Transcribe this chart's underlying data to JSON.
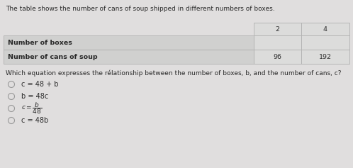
{
  "bg_color": "#e0dede",
  "title_text": "The table shows the number of cans of soup shipped in different numbers of boxes.",
  "table_row1_label": "Number of boxes",
  "table_row2_label": "Number of cans of soup",
  "col_headers": [
    "2",
    "4"
  ],
  "table_data": [
    "96",
    "192"
  ],
  "question_text": "Which equation expresses the rélationship between the number of boxes, b, and the number of cans, c?",
  "options": [
    "c = 48 + b",
    "b = 48c",
    "c = b/48",
    "c = 48b"
  ],
  "text_color": "#2a2a2a",
  "label_cell_color": "#d0d0cf",
  "data_cell_color": "#dcdcdb",
  "header_cell_color": "#dcdcdb",
  "border_color": "#b0b0b0",
  "circle_color": "#999999",
  "title_fontsize": 6.5,
  "label_fontsize": 6.8,
  "question_fontsize": 6.5,
  "option_fontsize": 7.0
}
